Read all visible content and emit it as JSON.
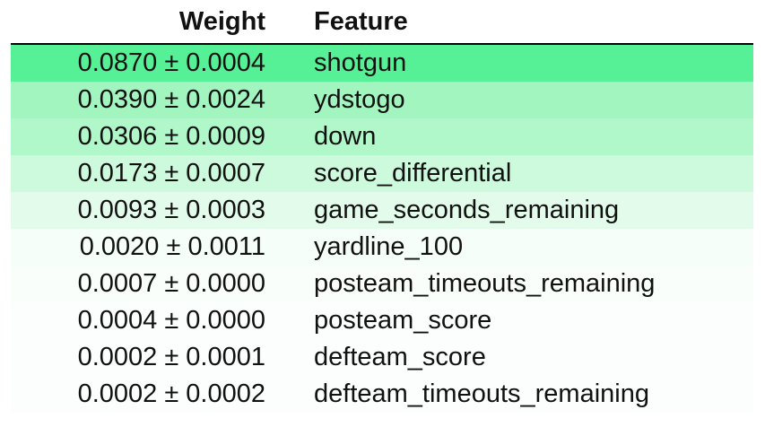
{
  "table": {
    "headers": {
      "weight": "Weight",
      "feature": "Feature"
    },
    "rows": [
      {
        "weight": "0.0870 ± 0.0004",
        "feature": "shotgun",
        "color": "#56f097"
      },
      {
        "weight": "0.0390 ± 0.0024",
        "feature": "ydstogo",
        "color": "#a3f5c0"
      },
      {
        "weight": "0.0306 ± 0.0009",
        "feature": "down",
        "color": "#b0f7c9"
      },
      {
        "weight": "0.0173 ± 0.0007",
        "feature": "score_differential",
        "color": "#cdf9dc"
      },
      {
        "weight": "0.0093 ± 0.0003",
        "feature": "game_seconds_remaining",
        "color": "#e3fbeb"
      },
      {
        "weight": "0.0020 ± 0.0011",
        "feature": "yardline_100",
        "color": "#f6fef9"
      },
      {
        "weight": "0.0007 ± 0.0000",
        "feature": "posteam_timeouts_remaining",
        "color": "#fafefb"
      },
      {
        "weight": "0.0004 ± 0.0000",
        "feature": "posteam_score",
        "color": "#fbfefc"
      },
      {
        "weight": "0.0002 ± 0.0001",
        "feature": "defteam_score",
        "color": "#fcfefd"
      },
      {
        "weight": "0.0002 ± 0.0002",
        "feature": "defteam_timeouts_remaining",
        "color": "#fcfefd"
      }
    ]
  }
}
